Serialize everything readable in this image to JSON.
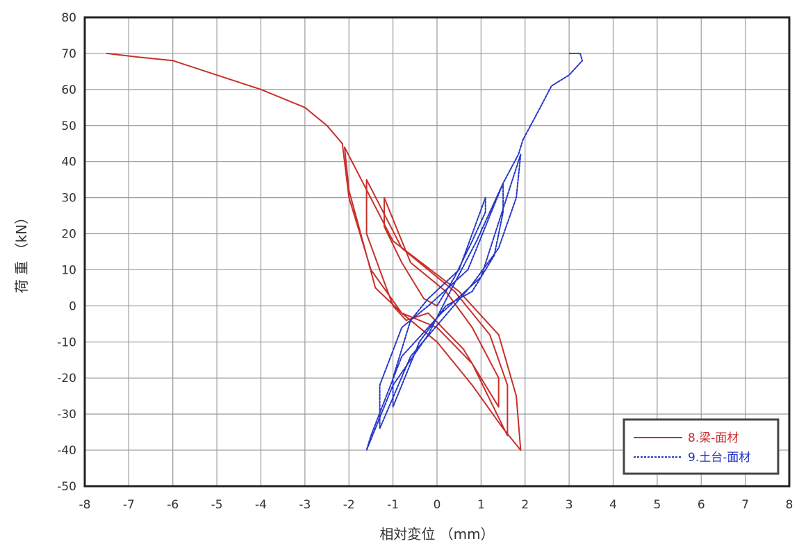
{
  "chart_data": {
    "type": "line",
    "title": "",
    "xlabel": "相対変位 （mm）",
    "ylabel": "荷 重 （kN）",
    "xlim": [
      -8,
      8
    ],
    "ylim": [
      -50,
      80
    ],
    "xticks": [
      -8,
      -7,
      -6,
      -5,
      -4,
      -3,
      -2,
      -1,
      0,
      1,
      2,
      3,
      4,
      5,
      6,
      7,
      8
    ],
    "yticks": [
      -50,
      -40,
      -30,
      -20,
      -10,
      0,
      10,
      20,
      30,
      40,
      50,
      60,
      70,
      80
    ],
    "grid": true,
    "legend_position": "bottom-right",
    "series": [
      {
        "name": "8.梁-面材",
        "color": "#c8302c",
        "x": [
          0,
          -0.3,
          -0.8,
          -1.2,
          -1.2,
          -0.6,
          0.2,
          0.8,
          1.4,
          1.4,
          0.6,
          -0.2,
          -0.7,
          -1.0,
          -1.6,
          -1.6,
          -0.8,
          0.4,
          1.2,
          1.6,
          1.6,
          0.8,
          0,
          -0.8,
          -1.4,
          -2.0,
          -2.1,
          -1.0,
          0.5,
          1.4,
          1.8,
          1.9,
          1.5,
          0.8,
          0,
          -0.8,
          -1.5,
          -2.0,
          -2.15,
          -2.5,
          -3.0,
          -4.0,
          -5.0,
          -6.0,
          -6.8,
          -7.5
        ],
        "y": [
          0,
          2,
          12,
          22,
          30,
          12,
          4,
          -6,
          -20,
          -28,
          -12,
          -2,
          -4,
          0,
          20,
          35,
          16,
          4,
          -8,
          -22,
          -36,
          -16,
          -6,
          -2,
          5,
          32,
          44,
          18,
          4,
          -8,
          -25,
          -40,
          -34,
          -22,
          -10,
          -2,
          10,
          30,
          45,
          50,
          55,
          60,
          64,
          68,
          69,
          70
        ]
      },
      {
        "name": "9.土台-面材",
        "color": "#2535c8",
        "x": [
          0,
          0.4,
          0.8,
          1.1,
          1.1,
          0.5,
          -0.2,
          -0.6,
          -1.0,
          -1.0,
          -0.4,
          0.2,
          0.8,
          1.3,
          1.5,
          1.5,
          0.7,
          -0.2,
          -0.8,
          -1.3,
          -1.3,
          -0.6,
          0.1,
          0.8,
          1.4,
          1.8,
          1.9,
          1.0,
          0.1,
          -0.8,
          -1.5,
          -1.6,
          -1.0,
          -0.2,
          0.3,
          0.9,
          1.5,
          1.85,
          1.95,
          2.3,
          2.6,
          3.0,
          3.3,
          3.25,
          3.0
        ],
        "y": [
          0,
          8,
          18,
          26,
          30,
          10,
          2,
          -4,
          -20,
          -28,
          -10,
          0,
          4,
          14,
          26,
          34,
          10,
          0,
          -6,
          -22,
          -34,
          -14,
          -4,
          6,
          16,
          30,
          42,
          8,
          -2,
          -14,
          -36,
          -40,
          -22,
          -8,
          4,
          18,
          34,
          42,
          46,
          54,
          61,
          64,
          68,
          70,
          70
        ]
      }
    ]
  }
}
